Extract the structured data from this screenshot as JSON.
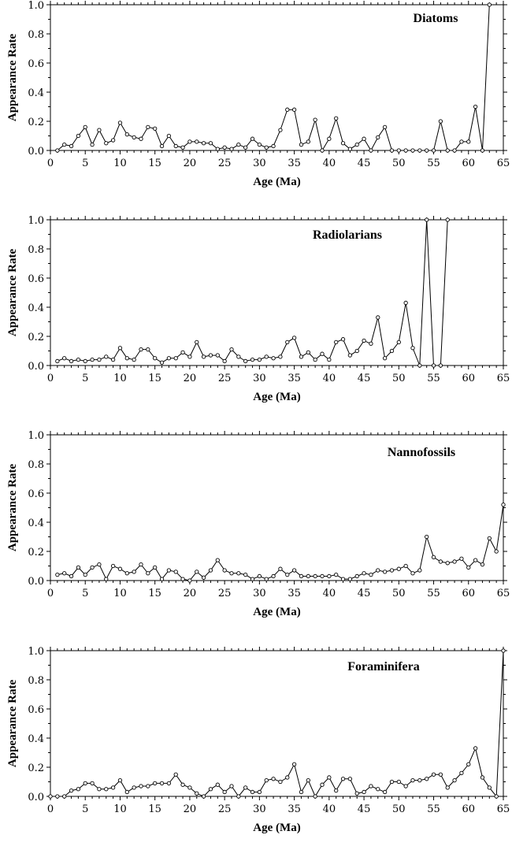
{
  "chart_data": [
    {
      "type": "line",
      "title": "Diatoms",
      "xlabel": "Age (Ma)",
      "ylabel": "Appearance Rate",
      "xlim": [
        0,
        65
      ],
      "ylim": [
        0,
        1.0
      ],
      "xticks": [
        0,
        5,
        10,
        15,
        20,
        25,
        30,
        35,
        40,
        45,
        50,
        55,
        60,
        65
      ],
      "yticks": [
        0.0,
        0.2,
        0.4,
        0.6,
        0.8,
        1.0
      ],
      "ytick_labels": [
        "0.0",
        "0.2",
        "0.4",
        "0.6",
        "0.8",
        "1.0"
      ],
      "legend": "top-right",
      "grid": false,
      "series": [
        {
          "x": [
            1,
            2,
            3,
            4,
            5,
            6,
            7,
            8,
            9,
            10,
            11,
            12,
            13,
            14,
            15,
            16,
            17,
            18,
            19,
            20,
            21,
            22,
            23,
            24,
            25,
            26,
            27,
            28,
            29,
            30,
            31,
            32,
            33,
            34,
            35,
            36,
            37,
            38,
            39,
            40,
            41,
            42,
            43,
            44,
            45,
            46,
            47,
            48,
            49,
            50,
            51,
            52,
            53,
            54,
            55,
            56,
            57,
            58,
            59,
            60,
            61,
            62,
            63
          ],
          "y": [
            0.0,
            0.04,
            0.03,
            0.1,
            0.16,
            0.04,
            0.14,
            0.05,
            0.07,
            0.19,
            0.11,
            0.09,
            0.08,
            0.16,
            0.15,
            0.03,
            0.1,
            0.03,
            0.02,
            0.06,
            0.06,
            0.05,
            0.05,
            0.01,
            0.02,
            0.01,
            0.04,
            0.02,
            0.08,
            0.04,
            0.02,
            0.03,
            0.14,
            0.28,
            0.28,
            0.04,
            0.06,
            0.21,
            0.0,
            0.08,
            0.22,
            0.05,
            0.01,
            0.04,
            0.08,
            0.0,
            0.09,
            0.16,
            0.0,
            0.0,
            0.0,
            0.0,
            0.0,
            0.0,
            0.0,
            0.2,
            0.0,
            0.0,
            0.06,
            0.06,
            0.3,
            0.0,
            1.0
          ]
        }
      ]
    },
    {
      "type": "line",
      "title": "Radiolarians",
      "xlabel": "Age (Ma)",
      "ylabel": "Appearance Rate",
      "xlim": [
        0,
        65
      ],
      "ylim": [
        0,
        1.0
      ],
      "xticks": [
        0,
        5,
        10,
        15,
        20,
        25,
        30,
        35,
        40,
        45,
        50,
        55,
        60,
        65
      ],
      "yticks": [
        0.0,
        0.2,
        0.4,
        0.6,
        0.8,
        1.0
      ],
      "ytick_labels": [
        "0.0",
        "0.2",
        "0.4",
        "0.6",
        "0.8",
        "1.0"
      ],
      "legend": "top-right",
      "grid": false,
      "series": [
        {
          "x": [
            1,
            2,
            3,
            4,
            5,
            6,
            7,
            8,
            9,
            10,
            11,
            12,
            13,
            14,
            15,
            16,
            17,
            18,
            19,
            20,
            21,
            22,
            23,
            24,
            25,
            26,
            27,
            28,
            29,
            30,
            31,
            32,
            33,
            34,
            35,
            36,
            37,
            38,
            39,
            40,
            41,
            42,
            43,
            44,
            45,
            46,
            47,
            48,
            49,
            50,
            51,
            52,
            53,
            54,
            55,
            56,
            57
          ],
          "y": [
            0.03,
            0.05,
            0.03,
            0.04,
            0.03,
            0.04,
            0.04,
            0.06,
            0.04,
            0.12,
            0.05,
            0.04,
            0.11,
            0.11,
            0.05,
            0.02,
            0.05,
            0.05,
            0.09,
            0.06,
            0.16,
            0.06,
            0.07,
            0.07,
            0.03,
            0.11,
            0.06,
            0.03,
            0.04,
            0.04,
            0.06,
            0.05,
            0.06,
            0.16,
            0.19,
            0.06,
            0.09,
            0.04,
            0.08,
            0.04,
            0.16,
            0.18,
            0.07,
            0.1,
            0.17,
            0.15,
            0.33,
            0.05,
            0.1,
            0.16,
            0.43,
            0.12,
            0.0,
            1.0,
            0.0,
            0.0,
            1.0
          ]
        }
      ]
    },
    {
      "type": "line",
      "title": "Nannofossils",
      "xlabel": "Age (Ma)",
      "ylabel": "Appearance Rate",
      "xlim": [
        0,
        65
      ],
      "ylim": [
        0,
        1.0
      ],
      "xticks": [
        0,
        5,
        10,
        15,
        20,
        25,
        30,
        35,
        40,
        45,
        50,
        55,
        60,
        65
      ],
      "yticks": [
        0.0,
        0.2,
        0.4,
        0.6,
        0.8,
        1.0
      ],
      "ytick_labels": [
        "0.0",
        "0.2",
        "0.4",
        "0.6",
        "0.8",
        "1.0"
      ],
      "legend": "top-right",
      "grid": false,
      "series": [
        {
          "x": [
            1,
            2,
            3,
            4,
            5,
            6,
            7,
            8,
            9,
            10,
            11,
            12,
            13,
            14,
            15,
            16,
            17,
            18,
            19,
            20,
            21,
            22,
            23,
            24,
            25,
            26,
            27,
            28,
            29,
            30,
            31,
            32,
            33,
            34,
            35,
            36,
            37,
            38,
            39,
            40,
            41,
            42,
            43,
            44,
            45,
            46,
            47,
            48,
            49,
            50,
            51,
            52,
            53,
            54,
            55,
            56,
            57,
            58,
            59,
            60,
            61,
            62,
            63,
            64,
            65
          ],
          "y": [
            0.04,
            0.05,
            0.03,
            0.09,
            0.04,
            0.09,
            0.11,
            0.01,
            0.1,
            0.08,
            0.05,
            0.06,
            0.11,
            0.05,
            0.09,
            0.01,
            0.07,
            0.06,
            0.01,
            0.0,
            0.06,
            0.02,
            0.07,
            0.14,
            0.07,
            0.05,
            0.05,
            0.04,
            0.01,
            0.03,
            0.01,
            0.03,
            0.08,
            0.04,
            0.07,
            0.03,
            0.03,
            0.03,
            0.03,
            0.03,
            0.04,
            0.01,
            0.01,
            0.03,
            0.05,
            0.04,
            0.07,
            0.06,
            0.07,
            0.08,
            0.1,
            0.05,
            0.07,
            0.3,
            0.16,
            0.13,
            0.12,
            0.13,
            0.15,
            0.09,
            0.14,
            0.11,
            0.29,
            0.2,
            0.52
          ]
        }
      ]
    },
    {
      "type": "line",
      "title": "Foraminifera",
      "xlabel": "Age (Ma)",
      "ylabel": "Appearance Rate",
      "xlim": [
        0,
        65
      ],
      "ylim": [
        0,
        1.0
      ],
      "xticks": [
        0,
        5,
        10,
        15,
        20,
        25,
        30,
        35,
        40,
        45,
        50,
        55,
        60,
        65
      ],
      "yticks": [
        0.0,
        0.2,
        0.4,
        0.6,
        0.8,
        1.0
      ],
      "ytick_labels": [
        "0.0",
        "0.2",
        "0.4",
        "0.6",
        "0.8",
        "1.0"
      ],
      "legend": "top-right",
      "grid": false,
      "series": [
        {
          "x": [
            0,
            1,
            2,
            3,
            4,
            5,
            6,
            7,
            8,
            9,
            10,
            11,
            12,
            13,
            14,
            15,
            16,
            17,
            18,
            19,
            20,
            21,
            22,
            23,
            24,
            25,
            26,
            27,
            28,
            29,
            30,
            31,
            32,
            33,
            34,
            35,
            36,
            37,
            38,
            39,
            40,
            41,
            42,
            43,
            44,
            45,
            46,
            47,
            48,
            49,
            50,
            51,
            52,
            53,
            54,
            55,
            56,
            57,
            58,
            59,
            60,
            61,
            62,
            63,
            64,
            65
          ],
          "y": [
            0.0,
            0.0,
            0.0,
            0.04,
            0.05,
            0.09,
            0.09,
            0.05,
            0.05,
            0.06,
            0.11,
            0.03,
            0.06,
            0.07,
            0.07,
            0.09,
            0.09,
            0.09,
            0.15,
            0.08,
            0.06,
            0.02,
            0.0,
            0.05,
            0.08,
            0.03,
            0.07,
            0.0,
            0.06,
            0.03,
            0.03,
            0.11,
            0.12,
            0.1,
            0.13,
            0.22,
            0.03,
            0.11,
            0.0,
            0.08,
            0.13,
            0.04,
            0.12,
            0.12,
            0.02,
            0.03,
            0.07,
            0.05,
            0.03,
            0.1,
            0.1,
            0.07,
            0.11,
            0.11,
            0.12,
            0.15,
            0.15,
            0.06,
            0.11,
            0.16,
            0.22,
            0.33,
            0.13,
            0.06,
            0.0,
            1.0
          ]
        }
      ]
    }
  ]
}
